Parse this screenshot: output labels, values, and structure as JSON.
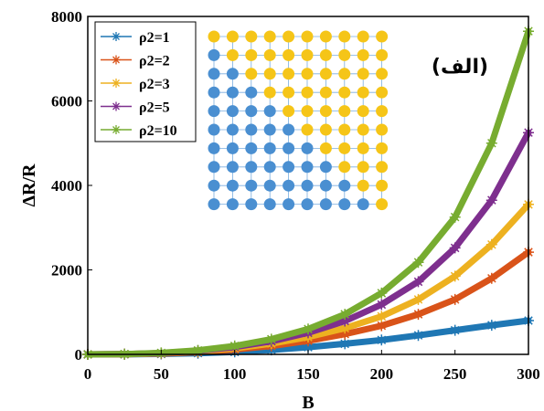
{
  "chart_data": {
    "type": "line",
    "title": "",
    "xlabel": "B",
    "ylabel": "ΔR/R",
    "xlim": [
      0,
      300
    ],
    "ylim": [
      0,
      8000
    ],
    "x_ticks": [
      0,
      50,
      100,
      150,
      200,
      250,
      300
    ],
    "y_ticks": [
      0,
      2000,
      4000,
      6000,
      8000
    ],
    "x_tick_labels": [
      "0",
      "50",
      "100",
      "150",
      "200",
      "250",
      "300"
    ],
    "y_tick_labels": [
      "0",
      "2000",
      "4000",
      "6000",
      "8000"
    ],
    "legend_position": "top-left",
    "annotation": "(الف)",
    "x": [
      0,
      25,
      50,
      75,
      100,
      125,
      150,
      175,
      200,
      225,
      250,
      275,
      300
    ],
    "series": [
      {
        "name": "ρ2=1",
        "color": "#1f77b4",
        "values": [
          0,
          2,
          10,
          28,
          58,
          105,
          170,
          250,
          340,
          450,
          570,
          690,
          800
        ]
      },
      {
        "name": "ρ2=2",
        "color": "#d95319",
        "values": [
          0,
          4,
          20,
          55,
          115,
          200,
          320,
          480,
          680,
          950,
          1300,
          1800,
          2420
        ]
      },
      {
        "name": "ρ2=3",
        "color": "#edb120",
        "values": [
          0,
          5,
          25,
          70,
          145,
          255,
          410,
          620,
          900,
          1300,
          1850,
          2600,
          3550
        ]
      },
      {
        "name": "ρ2=5",
        "color": "#7e2f8e",
        "values": [
          0,
          6,
          30,
          85,
          175,
          310,
          510,
          790,
          1180,
          1720,
          2520,
          3650,
          5250
        ]
      },
      {
        "name": "ρ2=10",
        "color": "#77ac30",
        "values": [
          0,
          7,
          35,
          95,
          200,
          360,
          600,
          950,
          1450,
          2180,
          3250,
          5000,
          7650
        ]
      }
    ],
    "inset": {
      "rows": 10,
      "cols": 10,
      "colors": {
        "blue": "#4a8fd1",
        "yellow": "#f5c518",
        "line": "#7aaee0"
      },
      "blue_count_per_row": [
        0,
        1,
        2,
        3,
        4,
        5,
        6,
        7,
        8,
        9
      ]
    }
  }
}
